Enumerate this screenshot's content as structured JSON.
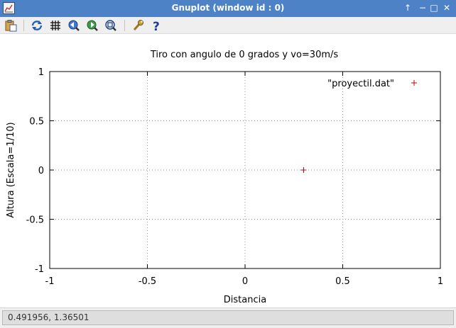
{
  "window": {
    "title": "Gnuplot (window id : 0)",
    "controls": {
      "keep_above": "↑",
      "minimize": "−",
      "maximize": "□",
      "close": "✕"
    }
  },
  "toolbar": {
    "items": [
      {
        "name": "copy-to-clipboard-button",
        "icon": "clipboard-icon"
      },
      {
        "name": "replot-button",
        "icon": "replot-icon"
      },
      {
        "name": "grid-toggle-button",
        "icon": "grid-icon"
      },
      {
        "name": "previous-zoom-button",
        "icon": "zoom-back-icon"
      },
      {
        "name": "next-zoom-button",
        "icon": "zoom-forward-icon"
      },
      {
        "name": "autoscale-button",
        "icon": "autoscale-icon"
      },
      {
        "name": "settings-button",
        "icon": "wrench-icon"
      },
      {
        "name": "help-button",
        "icon": "help-icon"
      }
    ]
  },
  "chart_data": {
    "type": "scatter",
    "title": "Tiro con angulo de 0 grados y vo=30m/s",
    "xlabel": "Distancia",
    "ylabel": "Altura (Escala=1/10)",
    "xlim": [
      -1,
      1
    ],
    "ylim": [
      -1,
      1
    ],
    "xticks": [
      -1,
      -0.5,
      0,
      0.5,
      1
    ],
    "yticks": [
      -1,
      -0.5,
      0,
      0.5,
      1
    ],
    "grid": true,
    "legend_position": "top-right",
    "series": [
      {
        "name": "\"proyectil.dat\"",
        "color": "#cc0000",
        "marker": "+",
        "points": [
          [
            0.3,
            0
          ]
        ]
      }
    ]
  },
  "status": {
    "coords": "0.491956,  1.36501"
  }
}
